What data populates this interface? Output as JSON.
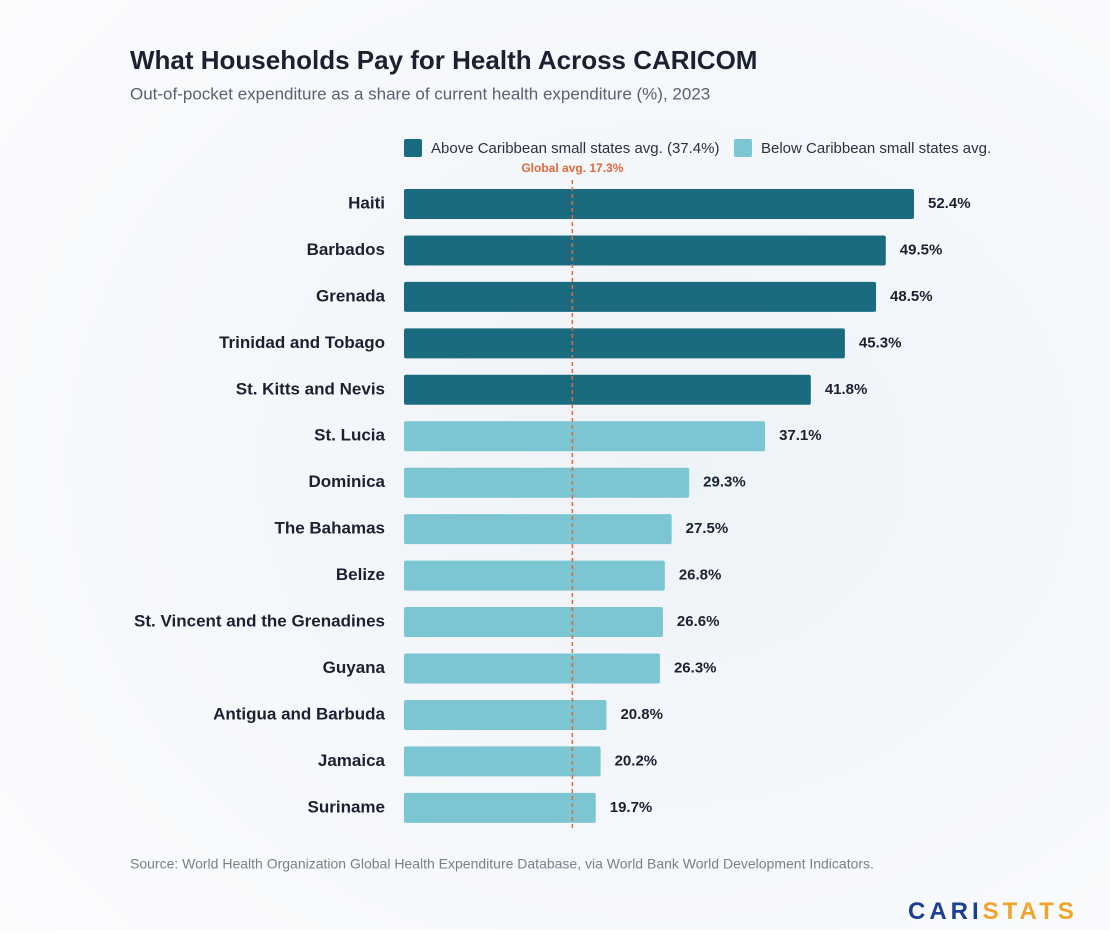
{
  "chart_data": {
    "type": "bar",
    "orientation": "horizontal",
    "title": "What Households Pay for Health Across CARICOM",
    "subtitle": "Out-of-pocket expenditure as a share of current health expenditure (%), 2023",
    "series": [
      {
        "name": "Above Caribbean small states avg. (37.4%)",
        "color": "#1a6b80",
        "categories": [
          "Haiti",
          "Barbados",
          "Grenada",
          "Trinidad and Tobago",
          "St. Kitts and Nevis"
        ],
        "values": [
          52.4,
          49.5,
          48.5,
          45.3,
          41.8
        ],
        "value_labels": [
          "52.4%",
          "49.5%",
          "48.5%",
          "45.3%",
          "41.8%"
        ]
      },
      {
        "name": "Below Caribbean small states avg.",
        "color": "#7cc6d4",
        "categories": [
          "St. Lucia",
          "Dominica",
          "The Bahamas",
          "Belize",
          "St. Vincent and the Grenadines",
          "Guyana",
          "Antigua and Barbuda",
          "Jamaica",
          "Suriname"
        ],
        "values": [
          37.1,
          29.3,
          27.5,
          26.8,
          26.6,
          26.3,
          20.8,
          20.2,
          19.7
        ],
        "value_labels": [
          "37.1%",
          "29.3%",
          "27.5%",
          "26.8%",
          "26.6%",
          "26.3%",
          "20.8%",
          "20.2%",
          "19.7%"
        ]
      }
    ],
    "reference_line": {
      "value": 17.3,
      "label": "Global avg. 17.3%",
      "color": "#e0683a"
    },
    "source": "Source: World Health Organization Global Health Expenditure Database, via World Bank World Development Indicators.",
    "logo": [
      "CARI",
      "STATS"
    ]
  }
}
